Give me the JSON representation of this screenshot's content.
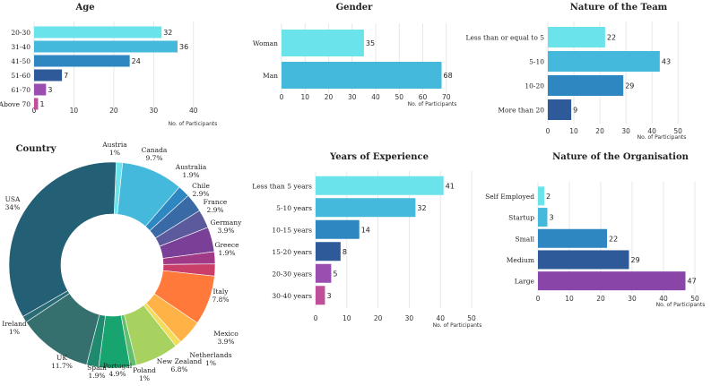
{
  "chart_data": [
    {
      "id": "age",
      "type": "bar",
      "orientation": "horizontal",
      "title": "Age",
      "categories": [
        "20-30",
        "31-40",
        "41-50",
        "51-60",
        "61-70",
        "Above 70"
      ],
      "values": [
        32,
        36,
        24,
        7,
        3,
        1
      ],
      "colors": [
        "#6be3ea",
        "#45b9dc",
        "#2f87c2",
        "#2e5a9a",
        "#9a4fb0",
        "#c04f9a"
      ],
      "xlabel": "No. of Participants",
      "xlim": [
        0,
        45
      ],
      "xticks": [
        0,
        10,
        20,
        30,
        40
      ]
    },
    {
      "id": "gender",
      "type": "bar",
      "orientation": "horizontal",
      "title": "Gender",
      "categories": [
        "Woman",
        "Man"
      ],
      "values": [
        35,
        68
      ],
      "colors": [
        "#6be3ea",
        "#45b9dc"
      ],
      "xlabel": "No. of Participants",
      "xlim": [
        0,
        72
      ],
      "xticks": [
        0,
        10,
        20,
        30,
        40,
        50,
        60,
        70
      ]
    },
    {
      "id": "team",
      "type": "bar",
      "orientation": "horizontal",
      "title": "Nature of the Team",
      "categories": [
        "Less than or equal to 5",
        "5-10",
        "10-20",
        "More than 20"
      ],
      "values": [
        22,
        43,
        29,
        9
      ],
      "colors": [
        "#6be3ea",
        "#45b9dc",
        "#2f87c2",
        "#2e5a9a"
      ],
      "xlabel": "No. of Participants",
      "xlim": [
        0,
        52
      ],
      "xticks": [
        0,
        10,
        20,
        30,
        40,
        50
      ]
    },
    {
      "id": "country",
      "type": "pie",
      "donut": true,
      "title": "Country",
      "slices": [
        {
          "label": "Austria",
          "value": 1,
          "pct": "1%",
          "color": "#6be3ea"
        },
        {
          "label": "Canada",
          "value": 9.7,
          "pct": "9.7%",
          "color": "#45b9dc"
        },
        {
          "label": "Australia",
          "value": 1.9,
          "pct": "1.9%",
          "color": "#2f87c2"
        },
        {
          "label": "Chile",
          "value": 2.9,
          "pct": "2.9%",
          "color": "#3a6aa6"
        },
        {
          "label": "France",
          "value": 2.9,
          "pct": "2.9%",
          "color": "#5a5a9c"
        },
        {
          "label": "Germany",
          "value": 3.9,
          "pct": "3.9%",
          "color": "#7a3f96"
        },
        {
          "label": "Greece",
          "value": 1.9,
          "pct": "1.9%",
          "color": "#a03a86"
        },
        {
          "label": "",
          "value": 1.9,
          "pct": "",
          "color": "#c93f6a"
        },
        {
          "label": "Italy",
          "value": 7.8,
          "pct": "7.8%",
          "color": "#ff7a3a"
        },
        {
          "label": "Mexico",
          "value": 3.9,
          "pct": "3.9%",
          "color": "#ffb347"
        },
        {
          "label": "Netherlands",
          "value": 1,
          "pct": "1%",
          "color": "#f2dc5a"
        },
        {
          "label": "New Zealand",
          "value": 6.8,
          "pct": "6.8%",
          "color": "#a7d25f"
        },
        {
          "label": "Poland",
          "value": 1,
          "pct": "1%",
          "color": "#5fbf6f"
        },
        {
          "label": "Portugal",
          "value": 4.9,
          "pct": "4.9%",
          "color": "#18a46e"
        },
        {
          "label": "Spain",
          "value": 1.9,
          "pct": "1.9%",
          "color": "#1f8a6f"
        },
        {
          "label": "UK",
          "value": 11.7,
          "pct": "11.7%",
          "color": "#35706f"
        },
        {
          "label": "Ireland",
          "value": 1,
          "pct": "1%",
          "color": "#2b6b76"
        },
        {
          "label": "USA",
          "value": 34,
          "pct": "34%",
          "color": "#235f75"
        }
      ]
    },
    {
      "id": "experience",
      "type": "bar",
      "orientation": "horizontal",
      "title": "Years of Experience",
      "categories": [
        "Less than 5 years",
        "5-10 years",
        "10-15 years",
        "15-20 years",
        "20-30 years",
        "30-40 years"
      ],
      "values": [
        41,
        32,
        14,
        8,
        5,
        3
      ],
      "colors": [
        "#6be3ea",
        "#45b9dc",
        "#2f87c2",
        "#2e5a9a",
        "#9a4fb0",
        "#c04f9a"
      ],
      "xlabel": "No. of Participants",
      "xlim": [
        0,
        52
      ],
      "xticks": [
        0,
        10,
        20,
        30,
        40,
        50
      ]
    },
    {
      "id": "organisation",
      "type": "bar",
      "orientation": "horizontal",
      "title": "Nature of the Organisation",
      "categories": [
        "Self Employed",
        "Startup",
        "Small",
        "Medium",
        "Large"
      ],
      "values": [
        2,
        3,
        22,
        29,
        47
      ],
      "colors": [
        "#6be3ea",
        "#45b9dc",
        "#2f87c2",
        "#2e5a9a",
        "#8a45a8"
      ],
      "xlabel": "No. of Participants",
      "xlim": [
        0,
        52
      ],
      "xticks": [
        0,
        10,
        20,
        30,
        40,
        50
      ]
    }
  ]
}
